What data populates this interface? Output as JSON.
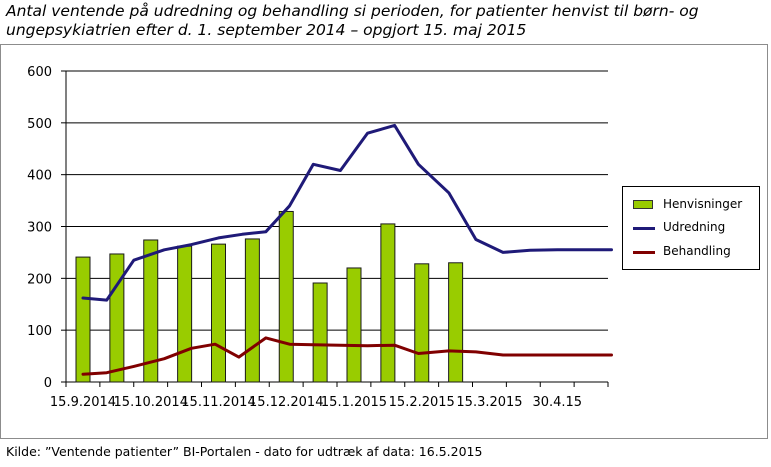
{
  "title": "Antal ventende på udredning og behandling si perioden, for patienter henvist til børn- og ungepsykiatrien efter d. 1. september 2014 – opgjort 15. maj 2015",
  "source_note": "Kilde: ”Ventende patienter” BI-Portalen - dato for udtræk af data: 16.5.2015",
  "chart_data": {
    "type": "bar",
    "title": "Antal ventende på udredning og behandling si perioden, for patienter henvist til børn- og ungepsykiatrien efter d. 1. september 2014 – opgjort 15. maj 2015",
    "ylim": [
      0,
      600
    ],
    "yticks": [
      0,
      100,
      200,
      300,
      400,
      500,
      600
    ],
    "grid": true,
    "legend_position": "right",
    "categories": [
      "15.9.2014",
      "15.10.2014",
      "15.11.2014",
      "15.12.2014",
      "15.1.2015",
      "15.2.2015",
      "15.3.2015",
      "30.4.15"
    ],
    "bars": {
      "name": "Henvisninger",
      "color": "#99cc00",
      "x": [
        "15.9.2014",
        "1.10.2014",
        "15.10.2014",
        "1.11.2014",
        "15.11.2014",
        "1.12.2014",
        "15.12.2014",
        "1.1.2015",
        "15.1.2015",
        "1.2.2015",
        "15.2.2015",
        "1.3.2015"
      ],
      "values": [
        241,
        247,
        274,
        262,
        266,
        276,
        329,
        191,
        220,
        305,
        228,
        230
      ]
    },
    "series": [
      {
        "name": "Udredning",
        "type": "line",
        "color": "#1f1a78",
        "x": [
          0.15,
          0.5,
          0.9,
          1.35,
          1.75,
          2.15,
          2.5,
          2.85,
          3.2,
          3.55,
          3.95,
          4.35,
          4.75,
          5.1,
          5.55,
          5.95,
          6.35,
          6.75,
          7.15,
          7.55,
          7.95
        ],
        "values": [
          162,
          158,
          235,
          255,
          265,
          278,
          285,
          290,
          340,
          420,
          408,
          480,
          495,
          420,
          365,
          275,
          250,
          254,
          255,
          255,
          255
        ]
      },
      {
        "name": "Behandling",
        "type": "line",
        "color": "#800000",
        "x": [
          0.15,
          0.5,
          0.9,
          1.35,
          1.75,
          2.1,
          2.45,
          2.85,
          3.2,
          3.55,
          3.95,
          4.35,
          4.75,
          5.1,
          5.55,
          5.95,
          6.35,
          6.75,
          7.15,
          7.55,
          7.95
        ],
        "values": [
          15,
          18,
          30,
          45,
          65,
          73,
          48,
          85,
          73,
          72,
          71,
          70,
          71,
          55,
          60,
          58,
          52,
          52,
          52,
          52,
          52
        ]
      }
    ]
  }
}
